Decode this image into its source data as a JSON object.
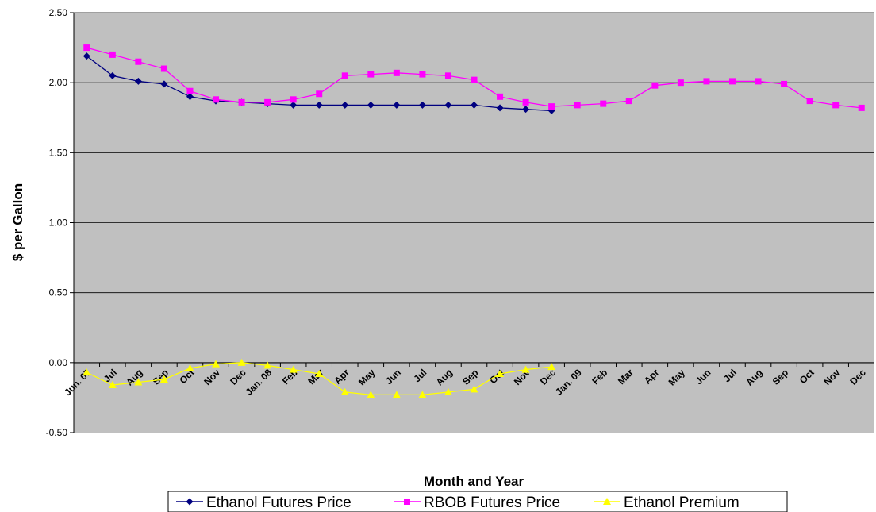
{
  "chart_data": {
    "type": "line",
    "xlabel": "Month and Year",
    "ylabel": "$ per Gallon",
    "ylim": [
      -0.5,
      2.5
    ],
    "yticks": [
      "2.50",
      "2.00",
      "1.50",
      "1.00",
      "0.50",
      "0.00",
      "-0.50"
    ],
    "grid": true,
    "legend_position": "bottom",
    "plot_background": "#c0c0c0",
    "categories": [
      "Jun. 07",
      "Jul",
      "Aug",
      "Sep",
      "Oct",
      "Nov",
      "Dec",
      "Jan. 08",
      "Feb",
      "Mar",
      "Apr",
      "May",
      "Jun",
      "Jul",
      "Aug",
      "Sep",
      "Oct",
      "Nov",
      "Dec",
      "Jan. 09",
      "Feb",
      "Mar",
      "Apr",
      "May",
      "Jun",
      "Jul",
      "Aug",
      "Sep",
      "Oct",
      "Nov",
      "Dec"
    ],
    "series": [
      {
        "name": "Ethanol Futures Price",
        "color": "#000080",
        "marker": "diamond",
        "values": [
          2.19,
          2.05,
          2.01,
          1.99,
          1.9,
          1.87,
          1.86,
          1.85,
          1.84,
          1.84,
          1.84,
          1.84,
          1.84,
          1.84,
          1.84,
          1.84,
          1.82,
          1.81,
          1.8,
          null,
          null,
          null,
          null,
          null,
          null,
          null,
          null,
          null,
          null,
          null,
          null
        ]
      },
      {
        "name": "RBOB Futures Price",
        "color": "#ff00ff",
        "marker": "square",
        "values": [
          2.25,
          2.2,
          2.15,
          2.1,
          1.94,
          1.88,
          1.86,
          1.86,
          1.88,
          1.92,
          2.05,
          2.06,
          2.07,
          2.06,
          2.05,
          2.02,
          1.9,
          1.86,
          1.83,
          1.84,
          1.85,
          1.87,
          1.98,
          2.0,
          2.01,
          2.01,
          2.01,
          1.99,
          1.87,
          1.84,
          1.82
        ]
      },
      {
        "name": "Ethanol Premium",
        "color": "#ffff00",
        "marker": "triangle",
        "values": [
          -0.07,
          -0.16,
          -0.14,
          -0.12,
          -0.04,
          -0.01,
          0.0,
          -0.02,
          -0.05,
          -0.08,
          -0.21,
          -0.23,
          -0.23,
          -0.23,
          -0.21,
          -0.19,
          -0.08,
          -0.05,
          -0.03,
          null,
          null,
          null,
          null,
          null,
          null,
          null,
          null,
          null,
          null,
          null,
          null
        ]
      }
    ]
  }
}
